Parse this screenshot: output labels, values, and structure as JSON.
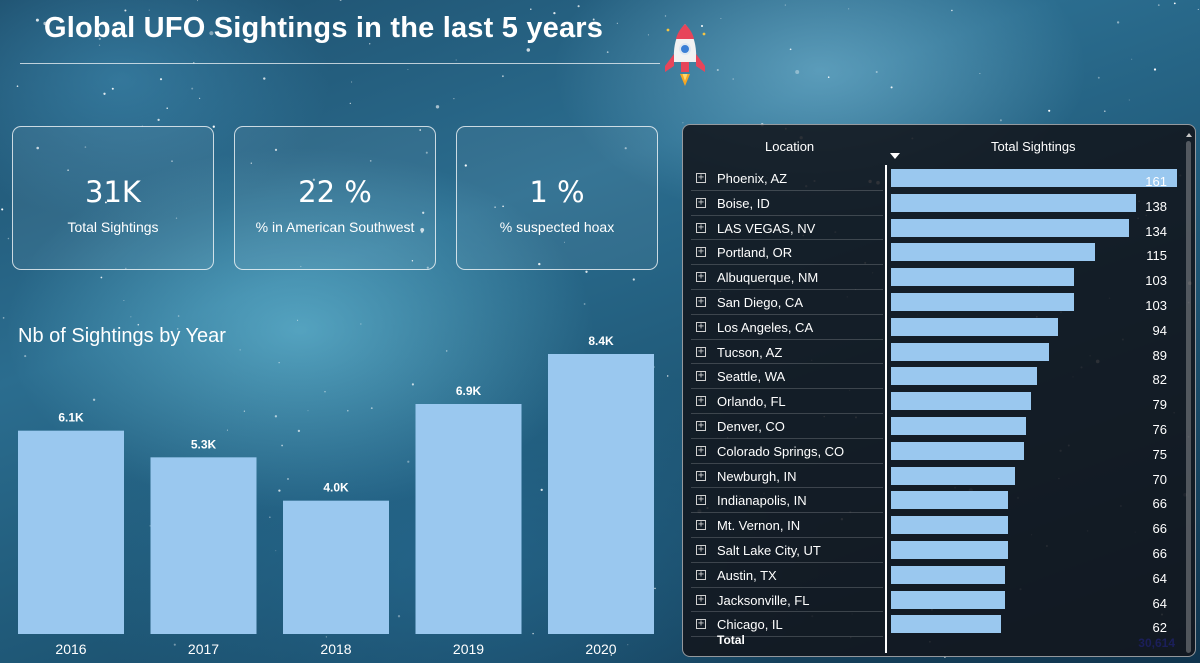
{
  "header": {
    "title": "Global UFO Sightings in the last 5 years",
    "logo_icon": "rocket-icon"
  },
  "kpis": [
    {
      "value": "31K",
      "label": "Total Sightings"
    },
    {
      "value": "22 %",
      "label": "% in American Southwest"
    },
    {
      "value": "1 %",
      "label": "% suspected hoax"
    }
  ],
  "colors": {
    "bar": "#9ac8ef",
    "panel": "#12161c",
    "text": "#ffffff"
  },
  "chart_data": [
    {
      "type": "bar",
      "title": "Nb of Sightings by Year",
      "categories": [
        "2016",
        "2017",
        "2018",
        "2019",
        "2020"
      ],
      "values": [
        6100,
        5300,
        4000,
        6900,
        8400
      ],
      "data_labels": [
        "6.1K",
        "5.3K",
        "4.0K",
        "6.9K",
        "8.4K"
      ],
      "ylim": [
        0,
        8400
      ],
      "grid": false
    },
    {
      "type": "table",
      "columns": [
        "Location",
        "Total Sightings"
      ],
      "sorted_by": "Total Sightings",
      "rows": [
        {
          "location": "Phoenix, AZ",
          "value": 161
        },
        {
          "location": "Boise, ID",
          "value": 138
        },
        {
          "location": "LAS VEGAS, NV",
          "value": 134
        },
        {
          "location": "Portland, OR",
          "value": 115
        },
        {
          "location": "Albuquerque, NM",
          "value": 103
        },
        {
          "location": "San Diego, CA",
          "value": 103
        },
        {
          "location": "Los Angeles, CA",
          "value": 94
        },
        {
          "location": "Tucson, AZ",
          "value": 89
        },
        {
          "location": "Seattle, WA",
          "value": 82
        },
        {
          "location": "Orlando, FL",
          "value": 79
        },
        {
          "location": "Denver, CO",
          "value": 76
        },
        {
          "location": "Colorado Springs, CO",
          "value": 75
        },
        {
          "location": "Newburgh, IN",
          "value": 70
        },
        {
          "location": "Indianapolis, IN",
          "value": 66
        },
        {
          "location": "Mt. Vernon, IN",
          "value": 66
        },
        {
          "location": "Salt Lake City, UT",
          "value": 66
        },
        {
          "location": "Austin, TX",
          "value": 64
        },
        {
          "location": "Jacksonville, FL",
          "value": 64
        },
        {
          "location": "Chicago, IL",
          "value": 62
        }
      ],
      "total_label": "Total",
      "total_value": "30,614",
      "bar_max": 161
    }
  ]
}
